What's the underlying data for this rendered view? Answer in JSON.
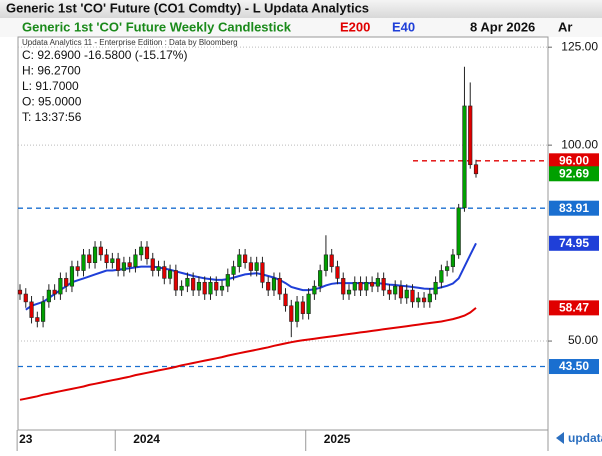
{
  "window_title": "Generic 1st 'CO' Future (CO1 Comdty) - L  Updata Analytics",
  "date": "8 Apr 2026",
  "corner": "Ar",
  "credit": "Updata Analytics 11 - Enterprise Edition : Data by Bloomberg",
  "readout": [
    "C: 92.6900  -16.5800 (-15.17%)",
    "H: 96.2700",
    "L: 91.7000",
    "O: 95.0000",
    "T: 13:37:56"
  ],
  "logo": "updata",
  "chart_data": {
    "type": "candlestick",
    "title": "Generic 1st 'CO' Future Weekly Candlestick",
    "title_color": "#1a8a1a",
    "categories": [
      "23",
      null,
      null,
      null,
      null,
      null,
      null,
      null,
      null,
      null,
      null,
      null,
      null,
      null,
      null,
      null,
      null,
      "2024",
      null,
      null,
      null,
      null,
      null,
      null,
      null,
      null,
      null,
      null,
      null,
      null,
      null,
      null,
      null,
      null,
      null,
      null,
      null,
      null,
      null,
      null,
      null,
      null,
      null,
      null,
      null,
      null,
      null,
      null,
      null,
      null,
      "2025",
      null,
      null,
      null,
      null,
      null,
      null,
      null,
      null,
      null,
      null,
      null,
      null,
      null,
      null,
      null,
      null,
      null,
      null,
      null,
      null,
      null,
      null,
      null,
      null,
      null,
      null,
      null,
      null,
      null
    ],
    "open": [
      63,
      62,
      60,
      56,
      55,
      60,
      63,
      62,
      66,
      64,
      69,
      68,
      72,
      70,
      74,
      72,
      70,
      71,
      68,
      70,
      69,
      72,
      74,
      71,
      68,
      69,
      66,
      68,
      63,
      64,
      66,
      63,
      65,
      62,
      65,
      63,
      64,
      67,
      69,
      72,
      70,
      68,
      70,
      65,
      63,
      66,
      62,
      59,
      55,
      60,
      57,
      62,
      64,
      68,
      72,
      69,
      66,
      62,
      63,
      65,
      63,
      65,
      64,
      66,
      63,
      62,
      64,
      61,
      63,
      60,
      61,
      60,
      62,
      65,
      68,
      69,
      72,
      84,
      110,
      95
    ],
    "high": [
      64.5,
      63.5,
      61.5,
      57.5,
      61.5,
      64.5,
      64.5,
      67.5,
      67.5,
      70.5,
      70.5,
      73.5,
      73.5,
      75.5,
      75.5,
      73.5,
      72.5,
      72.5,
      71.5,
      71.5,
      73.5,
      75.5,
      75.5,
      72.5,
      70.5,
      70.5,
      69.5,
      69.5,
      65.5,
      67.5,
      67.5,
      66.5,
      66.5,
      66.5,
      66.5,
      65.5,
      68.5,
      70.5,
      73.5,
      73.5,
      71.5,
      71.5,
      71.5,
      66.5,
      67.5,
      67.5,
      63.5,
      60.5,
      61.5,
      61.5,
      63.5,
      65.5,
      69.5,
      77,
      73.5,
      70.5,
      67.5,
      64.5,
      66.5,
      66.5,
      66.5,
      66.5,
      67.5,
      67.5,
      64.5,
      65.5,
      65.5,
      64.5,
      64.5,
      62.5,
      62.5,
      63.5,
      66.5,
      69.5,
      70.5,
      73.5,
      85,
      120,
      116,
      96.27
    ],
    "low": [
      60.5,
      58.5,
      54.5,
      53.5,
      53.5,
      58.5,
      60.5,
      60.5,
      62.5,
      62.5,
      66.5,
      66.5,
      68.5,
      68.5,
      70.5,
      68.5,
      68.5,
      66.5,
      66.5,
      67.5,
      67.5,
      70.5,
      69.5,
      66.5,
      66.5,
      64.5,
      64.5,
      61.5,
      61.5,
      62.5,
      61.5,
      61.5,
      60.5,
      60.5,
      61.5,
      61.5,
      62.5,
      65.5,
      67.5,
      68.5,
      66.5,
      66.5,
      63.5,
      61.5,
      61.5,
      60.5,
      57.5,
      51,
      53.5,
      55.5,
      55.5,
      60.5,
      62.5,
      66.5,
      67.5,
      64.5,
      60.5,
      60.5,
      61.5,
      61.5,
      61.5,
      62.5,
      62.5,
      61.5,
      60.5,
      60.5,
      59.5,
      59.5,
      58.5,
      58.5,
      58.5,
      58.5,
      60.5,
      63.5,
      66.5,
      67.5,
      71,
      83,
      94,
      91.7
    ],
    "close": [
      62,
      60,
      56,
      55,
      60,
      63,
      62,
      66,
      64,
      69,
      68,
      72,
      70,
      74,
      72,
      70,
      71,
      68,
      70,
      69,
      72,
      74,
      71,
      68,
      69,
      66,
      68,
      63,
      64,
      66,
      63,
      65,
      62,
      65,
      63,
      64,
      67,
      69,
      72,
      70,
      68,
      70,
      65,
      63,
      66,
      62,
      59,
      55,
      60,
      57,
      62,
      64,
      68,
      72,
      69,
      66,
      62,
      63,
      65,
      63,
      65,
      64,
      66,
      63,
      62,
      64,
      61,
      63,
      60,
      61,
      60,
      62,
      65,
      68,
      69,
      72,
      84,
      110,
      95,
      92.69
    ],
    "up_color": "#00a000",
    "down_color": "#e00000",
    "close_label": "92.69",
    "close_color": "#00a000",
    "series": [
      {
        "name": "E200",
        "color": "#e00000",
        "last_label": "58.47",
        "values": [
          35.0,
          35.3,
          35.6,
          35.9,
          36.3,
          36.6,
          36.9,
          37.2,
          37.5,
          37.8,
          38.1,
          38.4,
          38.8,
          39.1,
          39.4,
          39.7,
          40.0,
          40.3,
          40.6,
          40.9,
          41.3,
          41.6,
          41.9,
          42.2,
          42.5,
          42.8,
          43.1,
          43.4,
          43.8,
          44.1,
          44.4,
          44.7,
          45.0,
          45.3,
          45.6,
          45.9,
          46.3,
          46.6,
          46.9,
          47.2,
          47.5,
          47.8,
          48.1,
          48.4,
          48.8,
          49.1,
          49.4,
          49.7,
          50.0,
          50.2,
          50.4,
          50.6,
          50.8,
          51.0,
          51.2,
          51.4,
          51.6,
          51.8,
          52.0,
          52.2,
          52.4,
          52.6,
          52.8,
          53.0,
          53.2,
          53.4,
          53.6,
          53.8,
          54.0,
          54.2,
          54.4,
          54.6,
          54.8,
          55.0,
          55.3,
          55.6,
          56.0,
          56.5,
          57.3,
          58.47
        ]
      },
      {
        "name": "E40",
        "color": "#1f3fd8",
        "last_label": "74.95",
        "values": [
          null,
          58,
          59,
          59.5,
          60,
          61,
          62,
          63,
          64,
          65,
          65.5,
          66,
          66.5,
          67,
          67.5,
          68,
          68,
          68.2,
          68.4,
          68.6,
          68.8,
          69,
          69,
          69,
          68.8,
          68.5,
          68.2,
          67.8,
          67.4,
          67,
          66.6,
          66.3,
          66,
          65.8,
          65.6,
          65.6,
          65.8,
          66.2,
          66.6,
          67,
          67.2,
          67.3,
          67,
          66.6,
          66.2,
          65.6,
          64.8,
          63.8,
          63.4,
          63,
          63,
          63.2,
          63.6,
          64.2,
          64.6,
          64.8,
          64.8,
          64.8,
          64.8,
          64.8,
          64.8,
          64.8,
          64.8,
          64.6,
          64.4,
          64.3,
          64.1,
          64,
          63.8,
          63.6,
          63.4,
          63.3,
          63.4,
          63.7,
          64.1,
          64.7,
          66,
          69,
          72,
          74.95
        ]
      }
    ],
    "levels": [
      {
        "value": 96,
        "label": "96.00",
        "color": "#e00000",
        "extent": "partial"
      },
      {
        "value": 83.91,
        "label": "83.91",
        "color": "#1a6fd0",
        "extent": "full"
      },
      {
        "value": 43.5,
        "label": "43.50",
        "color": "#1a6fd0",
        "extent": "full"
      }
    ],
    "ylim": [
      27.3,
      127.6
    ],
    "yticks": [
      {
        "value": 50,
        "label": "50.00"
      },
      {
        "value": 100,
        "label": "100.00"
      },
      {
        "value": 125,
        "label": "125.00"
      }
    ],
    "grid": true
  }
}
